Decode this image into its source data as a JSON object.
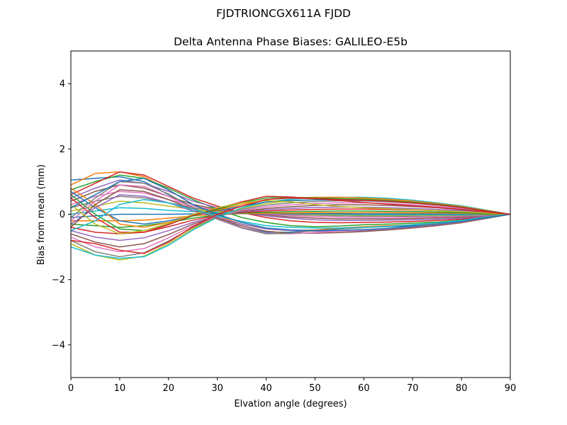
{
  "figure": {
    "suptitle": "FJDTRIONCGX611A FJDD"
  },
  "chart_data": {
    "type": "line",
    "title": "Delta Antenna Phase Biases: GALILEO-E5b",
    "xlabel": "Elvation angle (degrees)",
    "ylabel": "Bias from mean (mm)",
    "xlim": [
      0,
      90
    ],
    "ylim": [
      -5,
      5
    ],
    "xticks": [
      0,
      10,
      20,
      30,
      40,
      50,
      60,
      70,
      80,
      90
    ],
    "yticks": [
      -4,
      -2,
      0,
      2,
      4
    ],
    "xtick_labels": [
      "0",
      "10",
      "20",
      "30",
      "40",
      "50",
      "60",
      "70",
      "80",
      "90"
    ],
    "ytick_labels": [
      "−4",
      "−2",
      "0",
      "2",
      "4"
    ],
    "grid": false,
    "legend": "none",
    "line_width": 1.5,
    "x": [
      0,
      5,
      10,
      15,
      20,
      25,
      30,
      35,
      40,
      45,
      50,
      55,
      60,
      65,
      70,
      75,
      80,
      85,
      90
    ],
    "palette": [
      "#1f77b4",
      "#ff7f0e",
      "#2ca02c",
      "#d62728",
      "#9467bd",
      "#8c564b",
      "#e377c2",
      "#7f7f7f",
      "#bcbd22",
      "#17becf"
    ],
    "series": [
      {
        "color": "#1f77b4",
        "values": [
          1.05,
          1.1,
          1.15,
          1.0,
          0.6,
          0.2,
          -0.1,
          -0.4,
          -0.55,
          -0.55,
          -0.5,
          -0.45,
          -0.4,
          -0.38,
          -0.35,
          -0.32,
          -0.25,
          -0.12,
          0.0
        ]
      },
      {
        "color": "#ff7f0e",
        "values": [
          0.9,
          1.25,
          1.3,
          1.15,
          0.75,
          0.3,
          -0.05,
          -0.3,
          -0.45,
          -0.5,
          -0.48,
          -0.42,
          -0.38,
          -0.35,
          -0.32,
          -0.28,
          -0.22,
          -0.1,
          0.0
        ]
      },
      {
        "color": "#2ca02c",
        "values": [
          0.75,
          1.0,
          1.2,
          1.1,
          0.8,
          0.45,
          0.15,
          -0.1,
          -0.25,
          -0.35,
          -0.38,
          -0.36,
          -0.32,
          -0.3,
          -0.27,
          -0.24,
          -0.18,
          -0.09,
          0.0
        ]
      },
      {
        "color": "#d62728",
        "values": [
          0.6,
          0.95,
          1.3,
          1.2,
          0.85,
          0.5,
          0.25,
          0.05,
          -0.1,
          -0.2,
          -0.25,
          -0.26,
          -0.25,
          -0.24,
          -0.22,
          -0.19,
          -0.15,
          -0.07,
          0.0
        ]
      },
      {
        "color": "#9467bd",
        "values": [
          0.5,
          0.8,
          1.05,
          0.95,
          0.7,
          0.4,
          0.2,
          0.05,
          -0.05,
          -0.12,
          -0.17,
          -0.19,
          -0.19,
          -0.18,
          -0.17,
          -0.15,
          -0.12,
          -0.06,
          0.0
        ]
      },
      {
        "color": "#8c564b",
        "values": [
          0.4,
          0.7,
          0.9,
          0.8,
          0.55,
          0.3,
          0.15,
          0.05,
          -0.02,
          -0.08,
          -0.12,
          -0.14,
          -0.14,
          -0.14,
          -0.13,
          -0.11,
          -0.09,
          -0.04,
          0.0
        ]
      },
      {
        "color": "#e377c2",
        "values": [
          0.3,
          0.55,
          0.7,
          0.65,
          0.45,
          0.25,
          0.12,
          0.05,
          0.0,
          -0.04,
          -0.07,
          -0.09,
          -0.1,
          -0.1,
          -0.09,
          -0.08,
          -0.06,
          -0.03,
          0.0
        ]
      },
      {
        "color": "#7f7f7f",
        "values": [
          0.2,
          0.4,
          0.55,
          0.5,
          0.35,
          0.2,
          0.1,
          0.05,
          0.02,
          -0.01,
          -0.03,
          -0.05,
          -0.06,
          -0.06,
          -0.06,
          -0.05,
          -0.04,
          -0.02,
          0.0
        ]
      },
      {
        "color": "#bcbd22",
        "values": [
          0.1,
          0.25,
          0.4,
          0.35,
          0.25,
          0.15,
          0.08,
          0.05,
          0.03,
          0.01,
          -0.01,
          -0.02,
          -0.03,
          -0.03,
          -0.03,
          -0.03,
          -0.02,
          -0.01,
          0.0
        ]
      },
      {
        "color": "#17becf",
        "values": [
          0.0,
          0.1,
          0.2,
          0.18,
          0.12,
          0.08,
          0.05,
          0.04,
          0.03,
          0.02,
          0.01,
          0.0,
          -0.01,
          -0.01,
          -0.01,
          -0.01,
          -0.01,
          0.0,
          0.0
        ]
      },
      {
        "color": "#1f77b4",
        "values": [
          -0.1,
          -0.05,
          0.0,
          0.0,
          0.0,
          0.01,
          0.02,
          0.02,
          0.02,
          0.02,
          0.02,
          0.02,
          0.01,
          0.01,
          0.01,
          0.01,
          0.01,
          0.0,
          0.0
        ]
      },
      {
        "color": "#ff7f0e",
        "values": [
          -0.2,
          -0.2,
          -0.2,
          -0.18,
          -0.12,
          -0.05,
          0.0,
          0.02,
          0.03,
          0.04,
          0.05,
          0.05,
          0.05,
          0.05,
          0.04,
          0.04,
          0.03,
          0.01,
          0.0
        ]
      },
      {
        "color": "#2ca02c",
        "values": [
          -0.3,
          -0.35,
          -0.4,
          -0.35,
          -0.25,
          -0.12,
          -0.02,
          0.03,
          0.06,
          0.08,
          0.09,
          0.1,
          0.1,
          0.09,
          0.08,
          0.07,
          0.05,
          0.02,
          0.0
        ]
      },
      {
        "color": "#d62728",
        "values": [
          -0.4,
          -0.55,
          -0.6,
          -0.55,
          -0.38,
          -0.18,
          -0.03,
          0.05,
          0.1,
          0.13,
          0.15,
          0.16,
          0.16,
          0.15,
          0.13,
          0.11,
          0.08,
          0.04,
          0.0
        ]
      },
      {
        "color": "#9467bd",
        "values": [
          -0.5,
          -0.7,
          -0.8,
          -0.72,
          -0.5,
          -0.25,
          -0.05,
          0.07,
          0.14,
          0.18,
          0.21,
          0.22,
          0.22,
          0.2,
          0.18,
          0.15,
          0.11,
          0.05,
          0.0
        ]
      },
      {
        "color": "#8c564b",
        "values": [
          -0.6,
          -0.85,
          -1.0,
          -0.9,
          -0.62,
          -0.3,
          -0.06,
          0.09,
          0.18,
          0.23,
          0.27,
          0.29,
          0.29,
          0.27,
          0.24,
          0.2,
          0.14,
          0.07,
          0.0
        ]
      },
      {
        "color": "#e377c2",
        "values": [
          -0.7,
          -1.0,
          -1.15,
          -1.05,
          -0.72,
          -0.35,
          -0.07,
          0.12,
          0.23,
          0.29,
          0.33,
          0.35,
          0.35,
          0.33,
          0.29,
          0.24,
          0.17,
          0.08,
          0.0
        ]
      },
      {
        "color": "#7f7f7f",
        "values": [
          -0.8,
          -1.15,
          -1.3,
          -1.18,
          -0.82,
          -0.4,
          -0.08,
          0.15,
          0.28,
          0.35,
          0.39,
          0.41,
          0.41,
          0.38,
          0.34,
          0.28,
          0.2,
          0.1,
          0.0
        ]
      },
      {
        "color": "#bcbd22",
        "values": [
          -0.9,
          -1.25,
          -1.4,
          -1.28,
          -0.9,
          -0.44,
          -0.09,
          0.18,
          0.33,
          0.41,
          0.45,
          0.47,
          0.47,
          0.44,
          0.39,
          0.32,
          0.23,
          0.11,
          0.0
        ]
      },
      {
        "color": "#17becf",
        "values": [
          -1.0,
          -1.25,
          -1.35,
          -1.3,
          -0.95,
          -0.48,
          -0.1,
          0.2,
          0.38,
          0.46,
          0.5,
          0.52,
          0.52,
          0.49,
          0.43,
          0.35,
          0.26,
          0.13,
          0.0
        ]
      },
      {
        "color": "#1f77b4",
        "values": [
          0.7,
          0.2,
          -0.2,
          -0.3,
          -0.2,
          -0.05,
          0.1,
          0.25,
          0.38,
          0.42,
          0.44,
          0.44,
          0.43,
          0.4,
          0.35,
          0.29,
          0.21,
          0.1,
          0.0
        ]
      },
      {
        "color": "#ff7f0e",
        "values": [
          0.8,
          0.3,
          -0.3,
          -0.4,
          -0.25,
          -0.05,
          0.12,
          0.3,
          0.45,
          0.5,
          0.52,
          0.52,
          0.5,
          0.46,
          0.4,
          0.33,
          0.24,
          0.12,
          0.0
        ]
      },
      {
        "color": "#2ca02c",
        "values": [
          0.6,
          0.0,
          -0.45,
          -0.5,
          -0.3,
          -0.05,
          0.15,
          0.35,
          0.5,
          0.52,
          0.5,
          0.48,
          0.46,
          0.42,
          0.37,
          0.31,
          0.22,
          0.11,
          0.0
        ]
      },
      {
        "color": "#d62728",
        "values": [
          0.5,
          -0.1,
          -0.55,
          -0.55,
          -0.32,
          -0.03,
          0.18,
          0.38,
          0.55,
          0.53,
          0.48,
          0.45,
          0.43,
          0.4,
          0.35,
          0.29,
          0.21,
          0.1,
          0.0
        ]
      },
      {
        "color": "#9467bd",
        "values": [
          -0.3,
          0.2,
          0.6,
          0.55,
          0.35,
          0.1,
          -0.1,
          -0.3,
          -0.45,
          -0.5,
          -0.52,
          -0.52,
          -0.5,
          -0.46,
          -0.4,
          -0.33,
          -0.24,
          -0.12,
          0.0
        ]
      },
      {
        "color": "#8c564b",
        "values": [
          -0.4,
          0.3,
          0.75,
          0.7,
          0.45,
          0.15,
          -0.12,
          -0.35,
          -0.52,
          -0.58,
          -0.58,
          -0.56,
          -0.53,
          -0.48,
          -0.42,
          -0.35,
          -0.26,
          -0.13,
          0.0
        ]
      },
      {
        "color": "#e377c2",
        "values": [
          -0.2,
          0.4,
          0.9,
          0.85,
          0.55,
          0.18,
          -0.14,
          -0.4,
          -0.58,
          -0.6,
          -0.56,
          -0.52,
          -0.48,
          -0.44,
          -0.38,
          -0.31,
          -0.23,
          -0.11,
          0.0
        ]
      },
      {
        "color": "#7f7f7f",
        "values": [
          -0.1,
          0.5,
          1.0,
          0.95,
          0.62,
          0.2,
          -0.15,
          -0.42,
          -0.6,
          -0.58,
          -0.5,
          -0.45,
          -0.41,
          -0.37,
          -0.32,
          -0.26,
          -0.19,
          -0.09,
          0.0
        ]
      },
      {
        "color": "#bcbd22",
        "values": [
          0.3,
          -0.3,
          -0.6,
          -0.5,
          -0.28,
          0.0,
          0.2,
          0.35,
          0.42,
          0.38,
          0.3,
          0.24,
          0.2,
          0.17,
          0.14,
          0.11,
          0.08,
          0.04,
          0.0
        ]
      },
      {
        "color": "#17becf",
        "values": [
          -0.5,
          -0.2,
          0.3,
          0.45,
          0.35,
          0.15,
          -0.05,
          -0.22,
          -0.35,
          -0.4,
          -0.42,
          -0.42,
          -0.4,
          -0.37,
          -0.32,
          -0.26,
          -0.19,
          -0.09,
          0.0
        ]
      },
      {
        "color": "#1f77b4",
        "values": [
          0.2,
          0.6,
          1.0,
          1.1,
          0.75,
          0.3,
          0.0,
          -0.25,
          -0.42,
          -0.48,
          -0.5,
          -0.49,
          -0.47,
          -0.43,
          -0.37,
          -0.3,
          -0.22,
          -0.11,
          0.0
        ]
      },
      {
        "color": "#d62728",
        "values": [
          -0.8,
          -0.9,
          -1.1,
          -1.2,
          -0.85,
          -0.38,
          0.0,
          0.25,
          0.45,
          0.5,
          0.48,
          0.42,
          0.36,
          0.31,
          0.26,
          0.21,
          0.15,
          0.07,
          0.0
        ]
      }
    ]
  }
}
